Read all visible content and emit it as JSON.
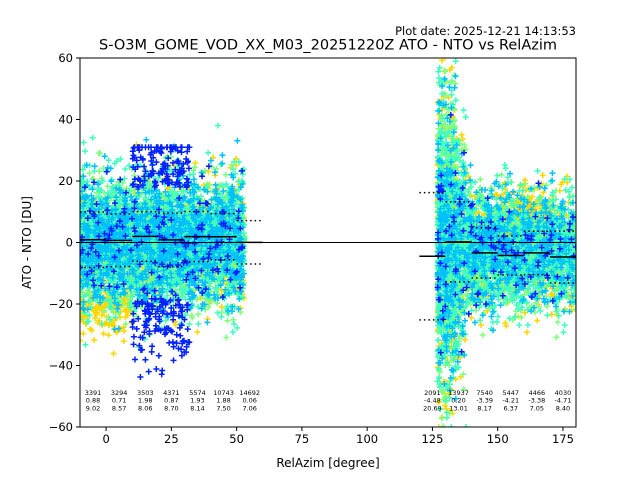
{
  "plot_date": "Plot date: 2025-12-21 14:13:53",
  "chart_data": {
    "type": "scatter",
    "title": "S-O3M_GOME_VOD_XX_M03_20251220Z ATO - NTO vs RelAzim",
    "xlabel": "RelAzim [degree]",
    "ylabel": "ATO - NTO [DU]",
    "xlim": [
      -10,
      180
    ],
    "ylim": [
      -60,
      60
    ],
    "xticks": [
      0,
      25,
      50,
      75,
      100,
      125,
      150,
      175
    ],
    "yticks": [
      -60,
      -40,
      -20,
      0,
      20,
      40,
      60
    ],
    "grid": false,
    "marker": "+",
    "colors": [
      "#ffd700",
      "#7fff7f",
      "#3fffbf",
      "#00bfff",
      "#0020ff"
    ],
    "reference_line": 0,
    "bin_width": 10,
    "bins": [
      {
        "center": -5,
        "count": "3391",
        "mean": "0.88",
        "std": "9.02"
      },
      {
        "center": 5,
        "count": "3294",
        "mean": "0.71",
        "std": "8.57"
      },
      {
        "center": 15,
        "count": "3503",
        "mean": "1.98",
        "std": "8.06"
      },
      {
        "center": 25,
        "count": "4371",
        "mean": "0.87",
        "std": "8.70"
      },
      {
        "center": 35,
        "count": "5574",
        "mean": "1.93",
        "std": "8.14"
      },
      {
        "center": 45,
        "count": "10743",
        "mean": "1.88",
        "std": "7.50"
      },
      {
        "center": 55,
        "count": "14692",
        "mean": "0.06",
        "std": "7.06"
      },
      {
        "center": 125,
        "count": "2091",
        "mean": "-4.48",
        "std": "20.69"
      },
      {
        "center": 135,
        "count": "13937",
        "mean": "0.20",
        "std": "13.01"
      },
      {
        "center": 145,
        "count": "7540",
        "mean": "-3.39",
        "std": "8.17"
      },
      {
        "center": 155,
        "count": "5447",
        "mean": "-4.21",
        "std": "6.37"
      },
      {
        "center": 165,
        "count": "4466",
        "mean": "-3.38",
        "std": "7.05"
      },
      {
        "center": 175,
        "count": "4030",
        "mean": "-4.71",
        "std": "8.40"
      }
    ]
  }
}
